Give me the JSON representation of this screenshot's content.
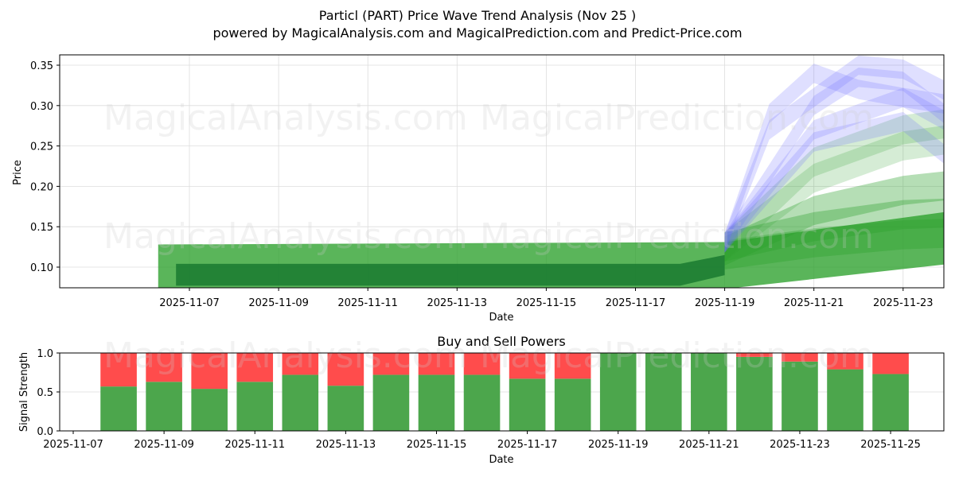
{
  "header": {
    "title": "Particl (PART) Price Wave Trend Analysis (Nov 25 )",
    "subtitle": "powered by MagicalAnalysis.com and MagicalPrediction.com and Predict-Price.com"
  },
  "watermarks": [
    "MagicalAnalysis.com",
    "MagicalPrediction.com"
  ],
  "colors": {
    "green_band": "#2ca02c",
    "dark_green": "#1a7a30",
    "blue_band": "#6f6fff",
    "buy": "#4ca64c",
    "sell": "#ff4c4c",
    "grid": "#dddddd"
  },
  "chart_data": [
    {
      "type": "area",
      "title": "Particl (PART) Price Wave Trend Analysis (Nov 25 )",
      "xlabel": "Date",
      "ylabel": "Price",
      "x_ticks": [
        "2025-11-07",
        "2025-11-09",
        "2025-11-11",
        "2025-11-13",
        "2025-11-15",
        "2025-11-17",
        "2025-11-19",
        "2025-11-21",
        "2025-11-23",
        "2025-11-25"
      ],
      "y_ticks": [
        "0.10",
        "0.15",
        "0.20",
        "0.25",
        "0.30",
        "0.35"
      ],
      "ylim": [
        0.073,
        0.362
      ],
      "xlim": [
        "2025-11-06",
        "2025-11-25.9"
      ],
      "grid": true,
      "series": [
        {
          "name": "historical-band-outer",
          "color": "green",
          "x": [
            "2025-11-06.3",
            "2025-11-19",
            "2025-11-25.5"
          ],
          "upper": [
            0.128,
            0.131,
            0.18
          ],
          "lower": [
            0.073,
            0.073,
            0.113
          ]
        },
        {
          "name": "historical-band-inner",
          "color": "dark-green",
          "x": [
            "2025-11-06.7",
            "2025-11-18",
            "2025-11-19"
          ],
          "upper": [
            0.104,
            0.104,
            0.115
          ],
          "lower": [
            0.077,
            0.077,
            0.09
          ]
        },
        {
          "name": "forecast-green-1",
          "color": "green",
          "x": [
            "2025-11-19",
            "2025-11-21",
            "2025-11-23",
            "2025-11-25.5"
          ],
          "values": [
            0.125,
            0.15,
            0.165,
            0.17
          ]
        },
        {
          "name": "forecast-green-2",
          "color": "green",
          "x": [
            "2025-11-19",
            "2025-11-21",
            "2025-11-23",
            "2025-11-25.5"
          ],
          "values": [
            0.12,
            0.17,
            0.195,
            0.21
          ]
        },
        {
          "name": "forecast-green-3",
          "color": "green",
          "x": [
            "2025-11-19",
            "2025-11-21",
            "2025-11-23",
            "2025-11-25.5"
          ],
          "values": [
            0.115,
            0.13,
            0.14,
            0.145
          ]
        },
        {
          "name": "forecast-green-4",
          "color": "light-green",
          "x": [
            "2025-11-19",
            "2025-11-21",
            "2025-11-23",
            "2025-11-25.5"
          ],
          "values": [
            0.125,
            0.21,
            0.25,
            0.27
          ]
        },
        {
          "name": "forecast-green-5",
          "color": "light-green",
          "x": [
            "2025-11-19",
            "2025-11-21",
            "2025-11-23",
            "2025-11-25.5"
          ],
          "values": [
            0.125,
            0.23,
            0.27,
            0.29
          ]
        },
        {
          "name": "forecast-blue-1",
          "color": "blue",
          "x": [
            "2025-11-19",
            "2025-11-20",
            "2025-11-21",
            "2025-11-22",
            "2025-11-23",
            "2025-11-25.3"
          ],
          "values": [
            0.13,
            0.29,
            0.34,
            0.32,
            0.31,
            0.29
          ]
        },
        {
          "name": "forecast-blue-2",
          "color": "blue",
          "x": [
            "2025-11-19",
            "2025-11-20",
            "2025-11-22",
            "2025-11-23",
            "2025-11-25.3"
          ],
          "values": [
            0.13,
            0.27,
            0.35,
            0.345,
            0.28
          ]
        },
        {
          "name": "forecast-blue-3",
          "color": "blue",
          "x": [
            "2025-11-19",
            "2025-11-21",
            "2025-11-22",
            "2025-11-23",
            "2025-11-25.3"
          ],
          "values": [
            0.13,
            0.3,
            0.335,
            0.33,
            0.23
          ]
        },
        {
          "name": "forecast-blue-4",
          "color": "blue",
          "x": [
            "2025-11-19",
            "2025-11-21",
            "2025-11-23",
            "2025-11-25.3"
          ],
          "values": [
            0.13,
            0.27,
            0.31,
            0.24
          ]
        },
        {
          "name": "forecast-blue-5",
          "color": "blue",
          "x": [
            "2025-11-19",
            "2025-11-21",
            "2025-11-23",
            "2025-11-25.3"
          ],
          "values": [
            0.13,
            0.255,
            0.28,
            0.18
          ]
        }
      ]
    },
    {
      "type": "bar",
      "title": "Buy and Sell Powers",
      "xlabel": "Date",
      "ylabel": "Signal Strength",
      "ylim": [
        0,
        1.0
      ],
      "y_ticks": [
        "0.0",
        "0.5",
        "1.0"
      ],
      "x_ticks": [
        "2025-11-07",
        "2025-11-09",
        "2025-11-11",
        "2025-11-13",
        "2025-11-15",
        "2025-11-17",
        "2025-11-19",
        "2025-11-21",
        "2025-11-23",
        "2025-11-25"
      ],
      "categories": [
        "2025-11-08",
        "2025-11-09",
        "2025-11-10",
        "2025-11-11",
        "2025-11-12",
        "2025-11-13",
        "2025-11-14",
        "2025-11-15",
        "2025-11-16",
        "2025-11-17",
        "2025-11-18",
        "2025-11-19",
        "2025-11-20",
        "2025-11-21",
        "2025-11-22",
        "2025-11-23",
        "2025-11-24",
        "2025-11-25"
      ],
      "series": [
        {
          "name": "Buy",
          "color": "#4ca64c",
          "values": [
            0.57,
            0.63,
            0.54,
            0.63,
            0.72,
            0.58,
            0.72,
            0.72,
            0.72,
            0.67,
            0.67,
            1.0,
            1.0,
            1.0,
            0.95,
            0.89,
            0.79,
            0.73
          ]
        },
        {
          "name": "Sell",
          "color": "#ff4c4c",
          "values": [
            0.43,
            0.37,
            0.46,
            0.37,
            0.28,
            0.42,
            0.28,
            0.28,
            0.28,
            0.33,
            0.33,
            0.0,
            0.0,
            0.0,
            0.05,
            0.11,
            0.21,
            0.27
          ]
        }
      ]
    }
  ]
}
